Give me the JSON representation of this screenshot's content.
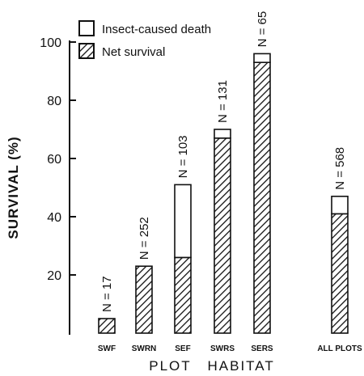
{
  "chart_data": {
    "type": "bar",
    "stacked": true,
    "categories": [
      "SWF",
      "SWRN",
      "SEF",
      "SWRS",
      "SERS",
      "ALL PLOTS"
    ],
    "series": [
      {
        "name": "Net survival",
        "values": [
          5,
          23,
          26,
          67,
          93,
          41
        ],
        "pattern": "hatch"
      },
      {
        "name": "Insect-caused death",
        "values": [
          0,
          0,
          25,
          3,
          3,
          6
        ],
        "pattern": "open"
      }
    ],
    "n_labels": [
      "N = 17",
      "N = 252",
      "N = 103",
      "N = 131",
      "N = 65",
      "N = 568"
    ],
    "xlabel": "PLOT   HABITAT",
    "ylabel": "SURVIVAL (%)",
    "ylim": [
      0,
      100
    ],
    "yticks": [
      20,
      40,
      60,
      80,
      100
    ],
    "ytick_labels": [
      "20",
      "40",
      "60",
      "80",
      "100"
    ],
    "legend_placement": "top-left",
    "colors": {
      "ink": "#111111",
      "background": "#ffffff"
    }
  }
}
